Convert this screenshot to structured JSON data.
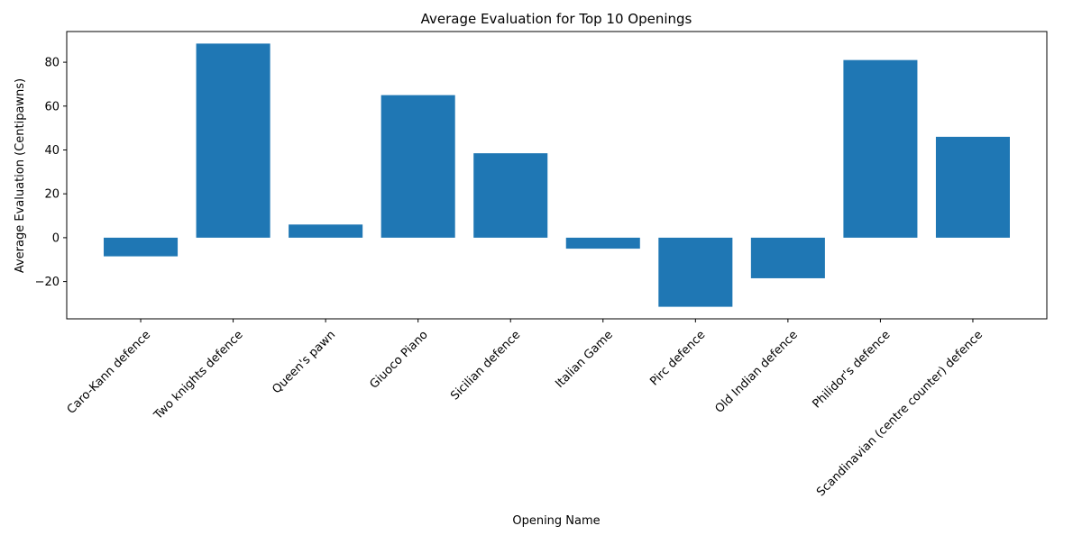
{
  "chart_data": {
    "type": "bar",
    "title": "Average Evaluation for Top 10 Openings",
    "xlabel": "Opening Name",
    "ylabel": "Average Evaluation (Centipawns)",
    "categories": [
      "Caro-Kann defence",
      "Two knights defence",
      "Queen's pawn",
      "Giuoco Piano",
      "Sicilian defence",
      "Italian Game",
      "Pirc defence",
      "Old Indian defence",
      "Philidor's defence",
      "Scandinavian (centre counter) defence"
    ],
    "values": [
      -8.5,
      88.5,
      6.0,
      65.0,
      38.5,
      -5.0,
      -31.5,
      -18.5,
      81.0,
      46.0
    ],
    "ylim": [
      -37,
      94
    ],
    "yticks": [
      -20,
      0,
      20,
      40,
      60,
      80
    ],
    "ytick_labels": [
      "−20",
      "0",
      "20",
      "40",
      "60",
      "80"
    ],
    "bar_color": "#1f77b4",
    "grid": false,
    "xtick_rotation_deg": 45
  }
}
